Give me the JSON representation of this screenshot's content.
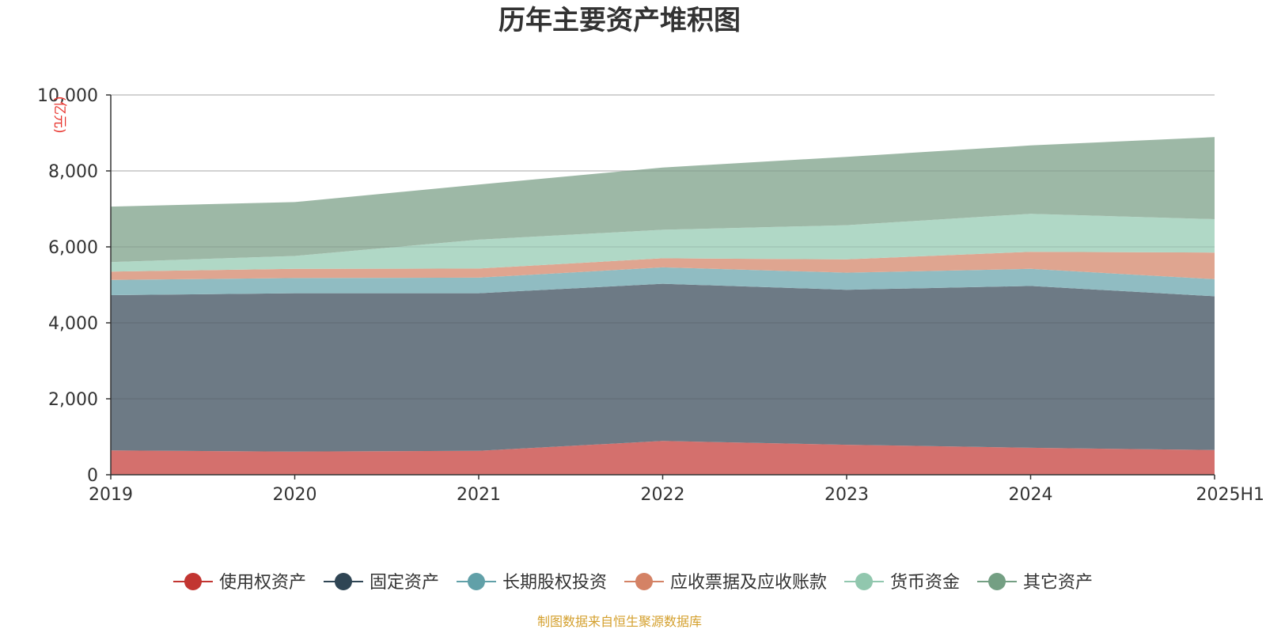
{
  "chart_data": {
    "type": "area",
    "stacked": true,
    "title": "历年主要资产堆积图",
    "y_unit": "(亿元)",
    "source": "制图数据来自恒生聚源数据库",
    "categories": [
      "2019",
      "2020",
      "2021",
      "2022",
      "2023",
      "2024",
      "2025H1"
    ],
    "ylim": [
      0,
      10000
    ],
    "yticks": [
      0,
      2000,
      4000,
      6000,
      8000,
      10000
    ],
    "ytick_labels": [
      "0",
      "2,000",
      "4,000",
      "6,000",
      "8,000",
      "10,000"
    ],
    "grid": true,
    "legend_position": "bottom",
    "series": [
      {
        "name": "使用权资产",
        "values": [
          640,
          610,
          630,
          890,
          790,
          710,
          650
        ],
        "color": "#c23531",
        "fill": "#d4706d"
      },
      {
        "name": "固定资产",
        "values": [
          4090,
          4170,
          4150,
          4140,
          4080,
          4260,
          4050
        ],
        "color": "#2f4554",
        "fill": "#6d7a85"
      },
      {
        "name": "长期股权投资",
        "values": [
          400,
          400,
          410,
          430,
          450,
          450,
          450
        ],
        "color": "#61a0a8",
        "fill": "#90bcc2"
      },
      {
        "name": "应收票据及应收账款",
        "values": [
          220,
          240,
          240,
          240,
          350,
          450,
          700
        ],
        "color": "#d48265",
        "fill": "#dfa590"
      },
      {
        "name": "货币资金",
        "values": [
          250,
          340,
          760,
          750,
          900,
          1000,
          880
        ],
        "color": "#91c7ae",
        "fill": "#b0d8c6"
      },
      {
        "name": "其它资产",
        "values": [
          1460,
          1420,
          1450,
          1640,
          1800,
          1800,
          2160
        ],
        "color": "#749f83",
        "fill": "#9db8a6"
      }
    ]
  }
}
